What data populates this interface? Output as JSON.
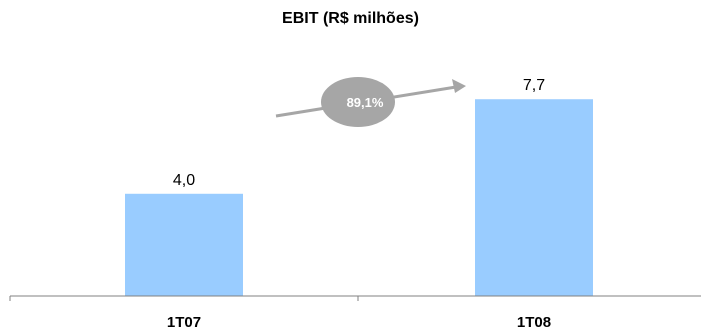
{
  "chart_data": {
    "type": "bar",
    "title": "EBIT (R$ milhões)",
    "categories": [
      "1T07",
      "1T08"
    ],
    "values": [
      4.0,
      7.7
    ],
    "value_labels": [
      "4,0",
      "7,7"
    ],
    "ylim": [
      0,
      9
    ],
    "grid": false,
    "bar_color": "#99CCFF",
    "annotation": {
      "text": "89,1%",
      "kind": "growth-arrow",
      "color": "#A6A6A6"
    }
  }
}
